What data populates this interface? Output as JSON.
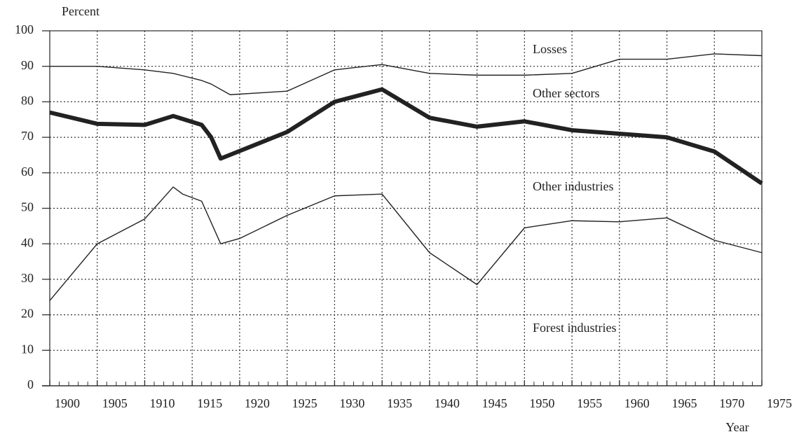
{
  "chart_data": {
    "type": "line",
    "y_label": "Percent",
    "x_label": "Year",
    "xlim": [
      1900,
      1975
    ],
    "xticks": [
      1900,
      1905,
      1910,
      1915,
      1920,
      1925,
      1930,
      1935,
      1940,
      1945,
      1950,
      1955,
      1960,
      1965,
      1970,
      1975
    ],
    "ylim": [
      0,
      100
    ],
    "yticks": [
      0,
      10,
      20,
      30,
      40,
      50,
      60,
      70,
      80,
      90,
      100
    ],
    "grid": true,
    "annotations": [
      "Losses",
      "Other sectors",
      "Other industries",
      "Forest industries"
    ],
    "series": [
      {
        "color": "#222222",
        "line_width": 1.4,
        "x": [
          1900,
          1905,
          1910,
          1913,
          1916,
          1917,
          1919,
          1925,
          1930,
          1935,
          1940,
          1945,
          1950,
          1955,
          1960,
          1965,
          1970,
          1975
        ],
        "values": [
          90,
          90,
          89,
          88,
          86,
          85,
          82,
          83,
          89,
          90.5,
          88,
          87.5,
          87.5,
          88,
          92,
          92,
          93.5,
          93
        ]
      },
      {
        "color": "#222222",
        "line_width": 6,
        "x": [
          1900,
          1905,
          1910,
          1913,
          1916,
          1917,
          1918,
          1925,
          1930,
          1935,
          1940,
          1945,
          1950,
          1955,
          1960,
          1965,
          1970,
          1975
        ],
        "values": [
          77,
          73.8,
          73.5,
          76,
          73.5,
          70,
          64,
          71.5,
          80,
          83.5,
          75.5,
          73,
          74.5,
          72,
          71,
          70,
          66,
          57
        ]
      },
      {
        "color": "#222222",
        "line_width": 1.4,
        "x": [
          1900,
          1905,
          1910,
          1912,
          1913,
          1914,
          1916,
          1918,
          1920,
          1925,
          1930,
          1935,
          1940,
          1945,
          1950,
          1955,
          1960,
          1965,
          1970,
          1975
        ],
        "values": [
          24,
          40,
          47,
          53,
          56,
          54,
          52,
          40,
          41.5,
          48,
          53.5,
          54,
          37.5,
          28.5,
          44.5,
          46.5,
          46.2,
          47.3,
          41,
          37.5
        ]
      }
    ]
  }
}
